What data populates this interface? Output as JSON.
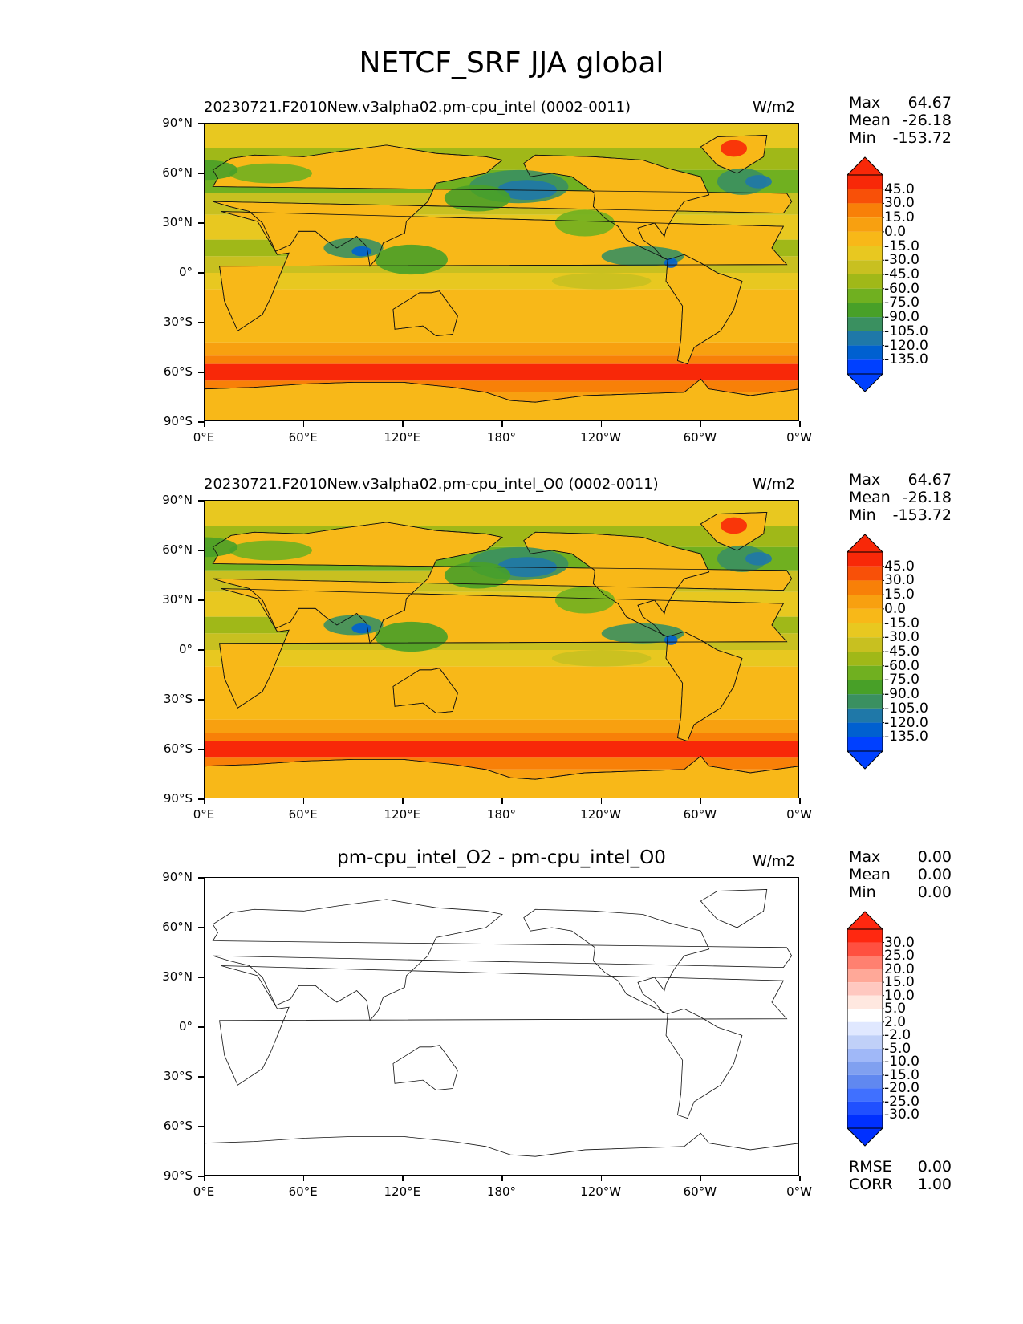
{
  "figure": {
    "title": "NETCF_SRF JJA global"
  },
  "colors": {
    "abs_levels": [
      "#0040ff",
      "#0060d0",
      "#1f78a8",
      "#3a9060",
      "#48a028",
      "#70b020",
      "#a0b818",
      "#c8c020",
      "#e8c820",
      "#f8b818",
      "#f8a010",
      "#f88008",
      "#f85008",
      "#f82808"
    ],
    "diff_levels": [
      "#0030ff",
      "#2050ff",
      "#4070ff",
      "#6088f0",
      "#80a0f0",
      "#a0b8f8",
      "#c0d0f8",
      "#e0e8ff",
      "#ffffff",
      "#ffe8e0",
      "#ffc8c0",
      "#ffa898",
      "#ff8070",
      "#ff5040",
      "#ff2810"
    ]
  },
  "chart_data": [
    {
      "type": "heatmap",
      "title": "20230721.F2010New.v3alpha02.pm-cpu_intel (0002-0011)",
      "units": "W/m2",
      "stats": {
        "max_label": "Max",
        "max": "64.67",
        "mean_label": "Mean",
        "mean": "-26.18",
        "min_label": "Min",
        "min": "-153.72"
      },
      "colorbar_ticks": [
        "45.0",
        "30.0",
        "15.0",
        "0.0",
        "-15.0",
        "-30.0",
        "-45.0",
        "-60.0",
        "-75.0",
        "-90.0",
        "-105.0",
        "-120.0",
        "-135.0"
      ],
      "x_ticks": [
        "0°E",
        "60°E",
        "120°E",
        "180°",
        "120°W",
        "60°W",
        "0°W"
      ],
      "y_ticks": [
        "90°N",
        "60°N",
        "30°N",
        "0°",
        "30°S",
        "60°S",
        "90°S"
      ],
      "xlim": [
        0,
        360
      ],
      "ylim": [
        -90,
        90
      ]
    },
    {
      "type": "heatmap",
      "title": "20230721.F2010New.v3alpha02.pm-cpu_intel_O0 (0002-0011)",
      "units": "W/m2",
      "stats": {
        "max_label": "Max",
        "max": "64.67",
        "mean_label": "Mean",
        "mean": "-26.18",
        "min_label": "Min",
        "min": "-153.72"
      },
      "colorbar_ticks": [
        "45.0",
        "30.0",
        "15.0",
        "0.0",
        "-15.0",
        "-30.0",
        "-45.0",
        "-60.0",
        "-75.0",
        "-90.0",
        "-105.0",
        "-120.0",
        "-135.0"
      ],
      "x_ticks": [
        "0°E",
        "60°E",
        "120°E",
        "180°",
        "120°W",
        "60°W",
        "0°W"
      ],
      "y_ticks": [
        "90°N",
        "60°N",
        "30°N",
        "0°",
        "30°S",
        "60°S",
        "90°S"
      ],
      "xlim": [
        0,
        360
      ],
      "ylim": [
        -90,
        90
      ]
    },
    {
      "type": "heatmap",
      "title": "pm-cpu_intel_O2 - pm-cpu_intel_O0",
      "units": "W/m2",
      "stats": {
        "max_label": "Max",
        "max": "0.00",
        "mean_label": "Mean",
        "mean": "0.00",
        "min_label": "Min",
        "min": "0.00"
      },
      "extra_stats": {
        "rmse_label": "RMSE",
        "rmse": "0.00",
        "corr_label": "CORR",
        "corr": "1.00"
      },
      "colorbar_ticks": [
        "30.0",
        "25.0",
        "20.0",
        "15.0",
        "10.0",
        "5.0",
        "2.0",
        "-2.0",
        "-5.0",
        "-10.0",
        "-15.0",
        "-20.0",
        "-25.0",
        "-30.0"
      ],
      "x_ticks": [
        "0°E",
        "60°E",
        "120°E",
        "180°",
        "120°W",
        "60°W",
        "0°W"
      ],
      "y_ticks": [
        "90°N",
        "60°N",
        "30°N",
        "0°",
        "30°S",
        "60°S",
        "90°S"
      ],
      "xlim": [
        0,
        360
      ],
      "ylim": [
        -90,
        90
      ]
    }
  ]
}
